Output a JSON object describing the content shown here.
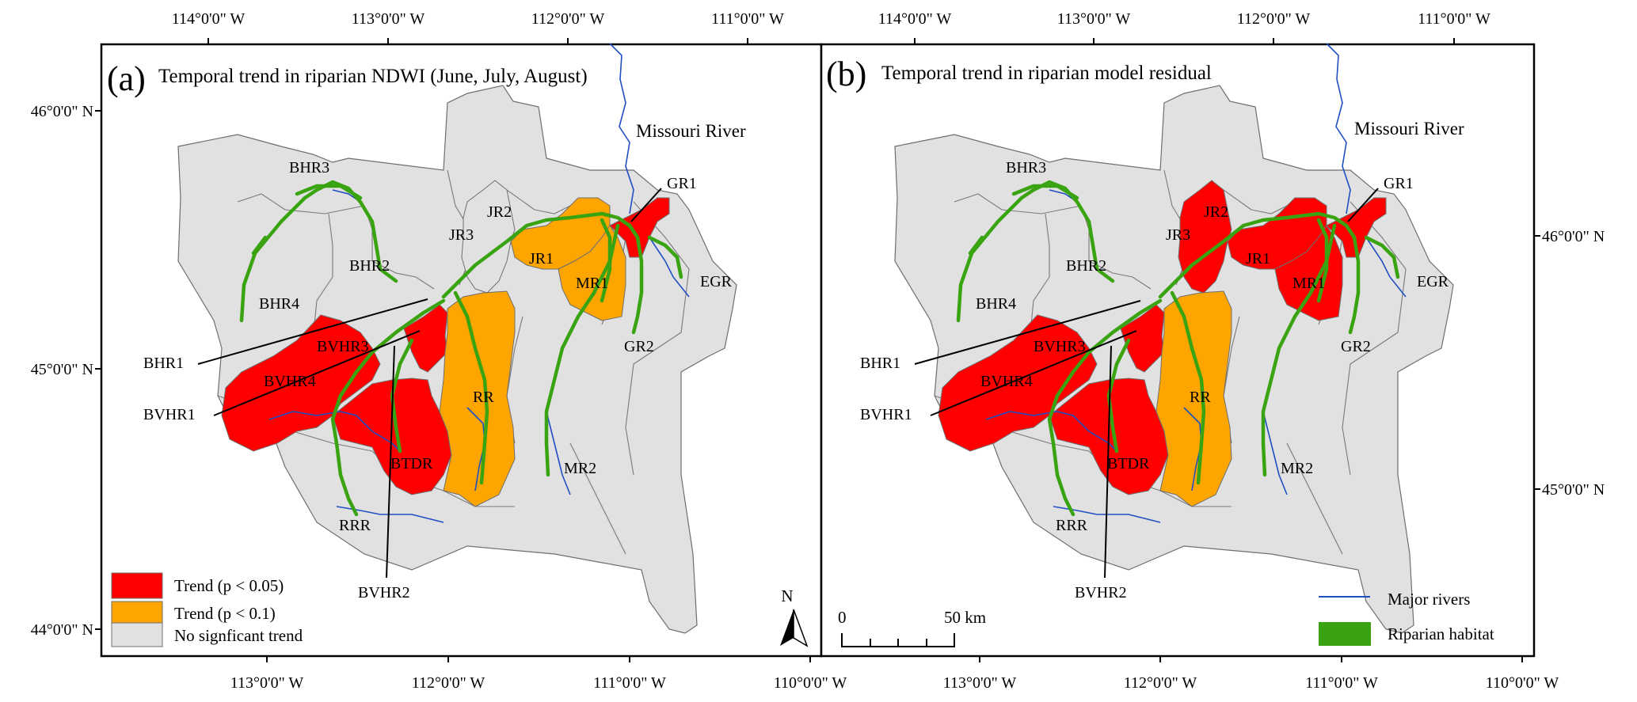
{
  "colors": {
    "significant": "#ff0000",
    "marginal": "#ffa500",
    "none": "#e1e1e1",
    "rivers": "#1f4fc2",
    "riparian": "#3aa312"
  },
  "top_ticks": [
    "114°0'0\" W",
    "113°0'0\" W",
    "112°0'0\" W",
    "111°0'0\" W",
    "114°0'0\" W",
    "113°0'0\" W",
    "112°0'0\" W",
    "111°0'0\" W"
  ],
  "bottom_ticks": [
    "113°0'0\" W",
    "112°0'0\" W",
    "111°0'0\" W",
    "110°0'0\" W",
    "113°0'0\" W",
    "112°0'0\" W",
    "111°0'0\" W",
    "110°0'0\" W"
  ],
  "left_ticks": [
    "46°0'0\" N",
    "45°0'0\" N",
    "44°0'0\" N"
  ],
  "right_ticks": [
    "46°0'0\" N",
    "45°0'0\" N"
  ],
  "panels": [
    {
      "letter": "(a)",
      "title": "Temporal trend in riparian NDWI (June, July, August)",
      "fills": {
        "JR3": "none",
        "JR1": "marginal",
        "MR1": "marginal",
        "RR": "marginal",
        "GR1": "significant",
        "BHR1": "significant",
        "BVHR": "significant",
        "BTDR": "significant"
      }
    },
    {
      "letter": "(b)",
      "title": "Temporal trend in riparian model residual",
      "fills": {
        "JR3": "significant",
        "JR1": "significant",
        "MR1": "significant",
        "RR": "marginal",
        "GR1": "significant",
        "BHR1": "significant",
        "BVHR": "significant",
        "BTDR": "significant"
      }
    }
  ],
  "watershed_labels": {
    "BHR3": "BHR3",
    "BHR2": "BHR2",
    "BHR4": "BHR4",
    "JR3": "JR3",
    "JR2": "JR2",
    "JR1": "JR1",
    "MR1": "MR1",
    "GR1": "GR1",
    "EGR": "EGR",
    "GR2": "GR2",
    "BVHR3": "BVHR3",
    "BVHR4": "BVHR4",
    "RR": "RR",
    "BTDR": "BTDR",
    "RRR": "RRR",
    "MR2": "MR2",
    "BHR1": "BHR1",
    "BVHR1": "BVHR1",
    "BVHR2": "BVHR2"
  },
  "river_name": "Missouri River",
  "legend": {
    "p005": "Trend (p < 0.05)",
    "p01": "Trend (p < 0.1)",
    "none": "No signficant trend",
    "rivers": "Major rivers",
    "riparian": "Riparian habitat"
  },
  "north": "N",
  "scalebar": {
    "start": "0",
    "end": "50 km"
  }
}
